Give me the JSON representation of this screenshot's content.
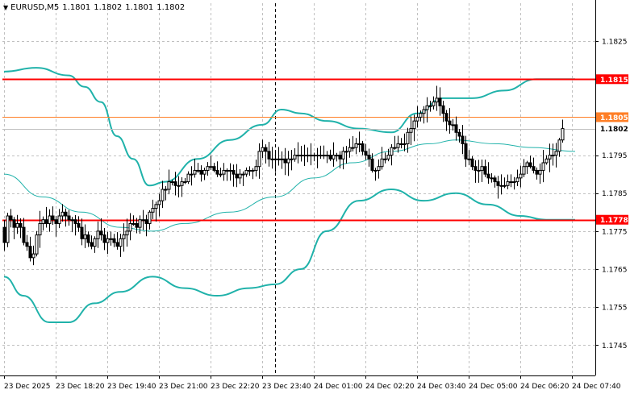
{
  "header": {
    "symbol": "EURUSD,M5",
    "open": "1.1801",
    "high": "1.1802",
    "low": "1.1801",
    "close": "1.1802"
  },
  "colors": {
    "background": "#ffffff",
    "grid": "#c0c0c0",
    "candle": "#000000",
    "band": "#20b2aa",
    "level_red": "#ff0000",
    "level_orange": "#ff7f27",
    "current_price_line": "#c0c0c0",
    "current_price_label_bg": "#ffffff"
  },
  "levels": [
    {
      "price": 1.1815,
      "label": "1.1815",
      "color": "#ff0000"
    },
    {
      "price": 1.1805,
      "label": "1.1805",
      "color": "#ff7f27"
    },
    {
      "price": 1.1778,
      "label": "1.1778",
      "color": "#ff0000"
    }
  ],
  "current_price": {
    "price": 1.1802,
    "label": "1.1802"
  },
  "chart_data": {
    "type": "candlestick",
    "title": "EURUSD,M5",
    "ylim": [
      1.1737,
      1.1835
    ],
    "y_ticks": [
      {
        "v": 1.1825,
        "label": "1.1825"
      },
      {
        "v": 1.1795,
        "label": "1.1795"
      },
      {
        "v": 1.1785,
        "label": "1.1785"
      },
      {
        "v": 1.1775,
        "label": "1.1775"
      },
      {
        "v": 1.1765,
        "label": "1.1765"
      },
      {
        "v": 1.1755,
        "label": "1.1755"
      },
      {
        "v": 1.1745,
        "label": "1.1745"
      }
    ],
    "x_labels": [
      "23 Dec 2025",
      "23 Dec 18:20",
      "23 Dec 19:40",
      "23 Dec 21:00",
      "23 Dec 22:20",
      "23 Dec 23:40",
      "24 Dec 01:00",
      "24 Dec 02:20",
      "24 Dec 03:40",
      "24 Dec 05:00",
      "24 Dec 06:20",
      "24 Dec 07:40"
    ],
    "x_label_index": [
      0,
      16,
      32,
      48,
      64,
      80,
      96,
      112,
      128,
      144,
      160,
      176
    ],
    "grid": true,
    "period_separator_index": 84,
    "closes": [
      1.1772,
      1.1779,
      1.1778,
      1.1776,
      1.1777,
      1.1776,
      1.1772,
      1.1771,
      1.1768,
      1.1769,
      1.1774,
      1.1777,
      1.1778,
      1.1777,
      1.1779,
      1.1778,
      1.1777,
      1.1779,
      1.178,
      1.1779,
      1.1778,
      1.1778,
      1.1777,
      1.1776,
      1.1773,
      1.1774,
      1.1772,
      1.1771,
      1.1773,
      1.1775,
      1.1774,
      1.1772,
      1.1773,
      1.1773,
      1.1772,
      1.1771,
      1.1773,
      1.1774,
      1.1775,
      1.1777,
      1.1777,
      1.1776,
      1.1778,
      1.1778,
      1.1777,
      1.178,
      1.1781,
      1.1782,
      1.1783,
      1.1786,
      1.1786,
      1.1788,
      1.1788,
      1.1787,
      1.1787,
      1.1788,
      1.1788,
      1.179,
      1.179,
      1.1791,
      1.1791,
      1.179,
      1.1791,
      1.1792,
      1.1792,
      1.1791,
      1.179,
      1.179,
      1.1791,
      1.1791,
      1.1791,
      1.179,
      1.1789,
      1.179,
      1.179,
      1.1791,
      1.1791,
      1.1791,
      1.1792,
      1.1796,
      1.1797,
      1.1796,
      1.1794,
      1.1794,
      1.1794,
      1.1794,
      1.1794,
      1.1793,
      1.1794,
      1.1794,
      1.1795,
      1.1795,
      1.1795,
      1.1795,
      1.1795,
      1.1795,
      1.1795,
      1.1795,
      1.1795,
      1.1795,
      1.1795,
      1.1794,
      1.1795,
      1.1795,
      1.1794,
      1.1796,
      1.1796,
      1.1797,
      1.1797,
      1.1798,
      1.1798,
      1.1796,
      1.1795,
      1.1794,
      1.1791,
      1.1791,
      1.1792,
      1.1794,
      1.1794,
      1.1795,
      1.1797,
      1.1797,
      1.1798,
      1.1798,
      1.1798,
      1.1801,
      1.1802,
      1.1804,
      1.1805,
      1.1806,
      1.1807,
      1.1808,
      1.1808,
      1.1809,
      1.181,
      1.1808,
      1.1806,
      1.1804,
      1.1803,
      1.1803,
      1.1801,
      1.18,
      1.1798,
      1.1794,
      1.1794,
      1.1792,
      1.1791,
      1.1791,
      1.1792,
      1.179,
      1.1789,
      1.1789,
      1.1788,
      1.1787,
      1.1787,
      1.1787,
      1.1788,
      1.1788,
      1.1788,
      1.1789,
      1.179,
      1.1792,
      1.1793,
      1.1792,
      1.1791,
      1.179,
      1.1791,
      1.1793,
      1.1794,
      1.1795,
      1.1795,
      1.1796,
      1.1799,
      1.1802
    ],
    "bands": {
      "upper": [
        [
          0,
          1.1817
        ],
        [
          10,
          1.1818
        ],
        [
          20,
          1.1816
        ],
        [
          25,
          1.1813
        ],
        [
          30,
          1.1809
        ],
        [
          35,
          1.18
        ],
        [
          40,
          1.1794
        ],
        [
          45,
          1.1787
        ],
        [
          50,
          1.1788
        ],
        [
          60,
          1.1794
        ],
        [
          70,
          1.1799
        ],
        [
          80,
          1.1803
        ],
        [
          86,
          1.1807
        ],
        [
          92,
          1.1806
        ],
        [
          100,
          1.1804
        ],
        [
          110,
          1.1802
        ],
        [
          120,
          1.1801
        ],
        [
          128,
          1.1806
        ],
        [
          136,
          1.181
        ],
        [
          145,
          1.181
        ],
        [
          155,
          1.1812
        ],
        [
          165,
          1.1815
        ],
        [
          177,
          1.1815
        ]
      ],
      "middle": [
        [
          0,
          1.179
        ],
        [
          12,
          1.1784
        ],
        [
          24,
          1.178
        ],
        [
          36,
          1.1776
        ],
        [
          46,
          1.1775
        ],
        [
          56,
          1.1777
        ],
        [
          70,
          1.178
        ],
        [
          84,
          1.1784
        ],
        [
          96,
          1.1789
        ],
        [
          108,
          1.1793
        ],
        [
          120,
          1.1796
        ],
        [
          132,
          1.1798
        ],
        [
          140,
          1.1799
        ],
        [
          152,
          1.1798
        ],
        [
          164,
          1.1797
        ],
        [
          177,
          1.1796
        ]
      ],
      "lower": [
        [
          0,
          1.1763
        ],
        [
          6,
          1.1758
        ],
        [
          14,
          1.1751
        ],
        [
          20,
          1.1751
        ],
        [
          28,
          1.1756
        ],
        [
          36,
          1.1759
        ],
        [
          46,
          1.1763
        ],
        [
          56,
          1.176
        ],
        [
          66,
          1.1758
        ],
        [
          76,
          1.176
        ],
        [
          84,
          1.1761
        ],
        [
          92,
          1.1765
        ],
        [
          100,
          1.1775
        ],
        [
          110,
          1.1783
        ],
        [
          120,
          1.1786
        ],
        [
          130,
          1.1783
        ],
        [
          140,
          1.1785
        ],
        [
          150,
          1.1782
        ],
        [
          160,
          1.1779
        ],
        [
          168,
          1.1778
        ],
        [
          177,
          1.1778
        ]
      ]
    }
  }
}
